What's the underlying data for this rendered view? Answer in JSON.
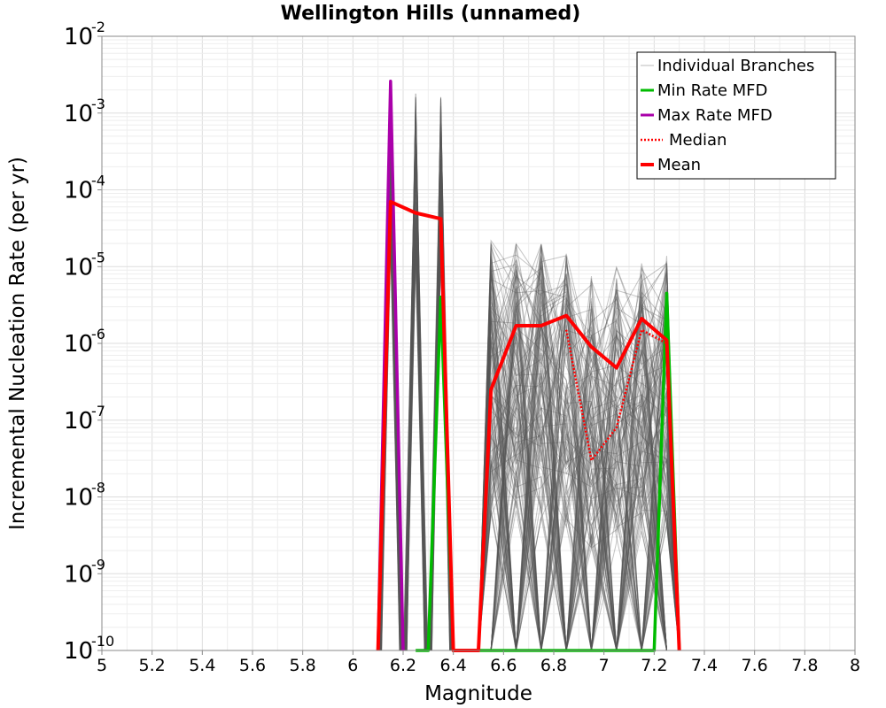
{
  "chart_data": {
    "type": "line",
    "title": "Wellington Hills (unnamed)",
    "xlabel": "Magnitude",
    "ylabel": "Incremental Nucleation Rate (per yr)",
    "xlim": [
      5,
      8
    ],
    "ylim": [
      1e-10,
      0.01
    ],
    "y_scale": "log",
    "grid": true,
    "legend_position": "top-right",
    "x_ticks": [
      "5",
      "5.2",
      "5.4",
      "5.6",
      "5.8",
      "6",
      "6.2",
      "6.4",
      "6.6",
      "6.8",
      "7",
      "7.2",
      "7.4",
      "7.6",
      "7.8",
      "8"
    ],
    "y_ticks": [
      {
        "base": "10",
        "exp": "-10"
      },
      {
        "base": "10",
        "exp": "-9"
      },
      {
        "base": "10",
        "exp": "-8"
      },
      {
        "base": "10",
        "exp": "-7"
      },
      {
        "base": "10",
        "exp": "-6"
      },
      {
        "base": "10",
        "exp": "-5"
      },
      {
        "base": "10",
        "exp": "-4"
      },
      {
        "base": "10",
        "exp": "-3"
      },
      {
        "base": "10",
        "exp": "-2"
      }
    ],
    "series": [
      {
        "name": "Individual Branches",
        "color": "#555555",
        "style": "thin-band",
        "x": [
          6.15,
          6.25,
          6.35,
          6.55,
          6.65,
          6.75,
          6.85,
          6.95,
          7.05,
          7.15,
          7.25
        ],
        "values_max": [
          0.0025,
          0.0018,
          0.0018,
          2.2e-05,
          2.5e-05,
          2e-05,
          1.5e-05,
          8e-06,
          1e-05,
          1.4e-05,
          1.4e-05
        ]
      },
      {
        "name": "Min Rate MFD",
        "color": "#00bb00",
        "style": "solid",
        "x": [
          6.25,
          6.3,
          6.35,
          6.4,
          7.15,
          7.2,
          7.25,
          7.3
        ],
        "values": [
          1e-10,
          1e-10,
          4e-06,
          1e-10,
          1e-10,
          1e-10,
          4.5e-06,
          1e-10
        ]
      },
      {
        "name": "Max Rate MFD",
        "color": "#aa00aa",
        "style": "solid",
        "x": [
          6.1,
          6.15,
          6.2
        ],
        "values": [
          1e-10,
          0.0026,
          1e-10
        ]
      },
      {
        "name": "Median",
        "color": "#ff0000",
        "style": "dotted",
        "x": [
          6.85,
          6.95,
          7.05,
          7.15,
          7.25,
          7.3
        ],
        "values": [
          1.5e-06,
          3e-08,
          8e-08,
          1.5e-06,
          1e-06,
          1e-10
        ]
      },
      {
        "name": "Mean",
        "color": "#ff0000",
        "style": "thick",
        "x": [
          6.1,
          6.15,
          6.25,
          6.35,
          6.4,
          6.5,
          6.55,
          6.65,
          6.75,
          6.85,
          6.95,
          7.05,
          7.15,
          7.25,
          7.3
        ],
        "values": [
          1e-10,
          7e-05,
          5e-05,
          4.2e-05,
          1e-10,
          1e-10,
          2.5e-07,
          1.7e-06,
          1.7e-06,
          2.3e-06,
          9e-07,
          4.8e-07,
          2.1e-06,
          1.1e-06,
          1e-10
        ]
      }
    ]
  }
}
